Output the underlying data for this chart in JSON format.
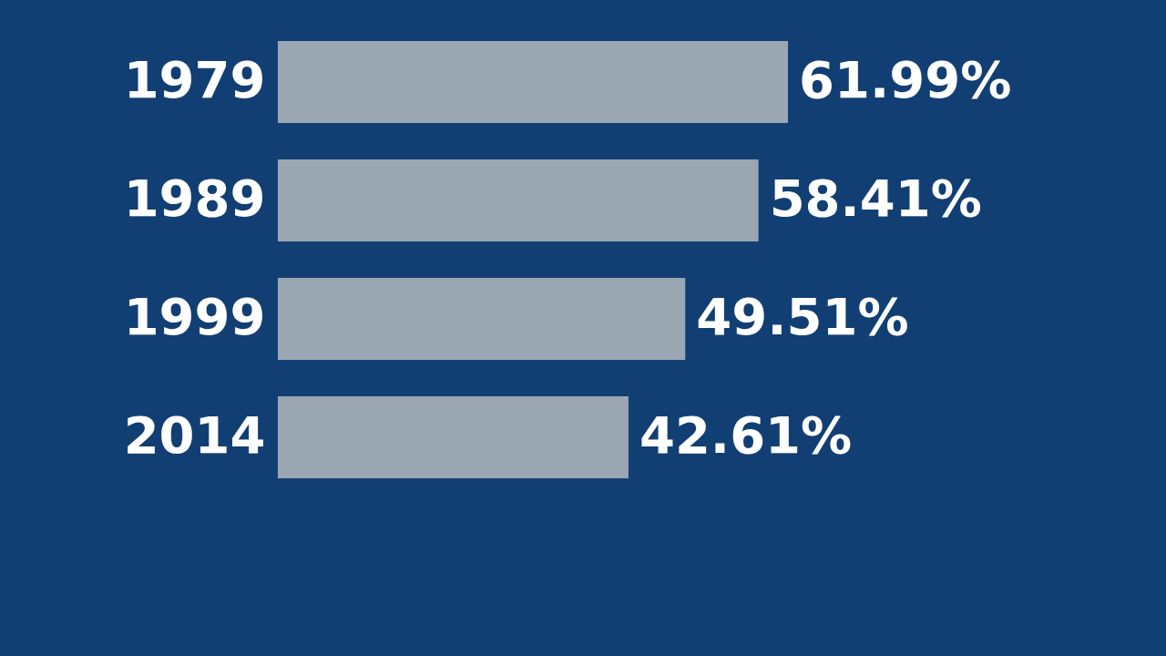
{
  "chart_data": {
    "type": "bar",
    "orientation": "horizontal",
    "categories": [
      "1979",
      "1989",
      "1999",
      "2014"
    ],
    "values": [
      61.99,
      58.41,
      49.51,
      42.61
    ],
    "value_labels": [
      "61.99%",
      "58.41%",
      "49.51%",
      "42.61%"
    ],
    "color": "#9aa6b2",
    "tick_labels": "y",
    "grid": false
  }
}
